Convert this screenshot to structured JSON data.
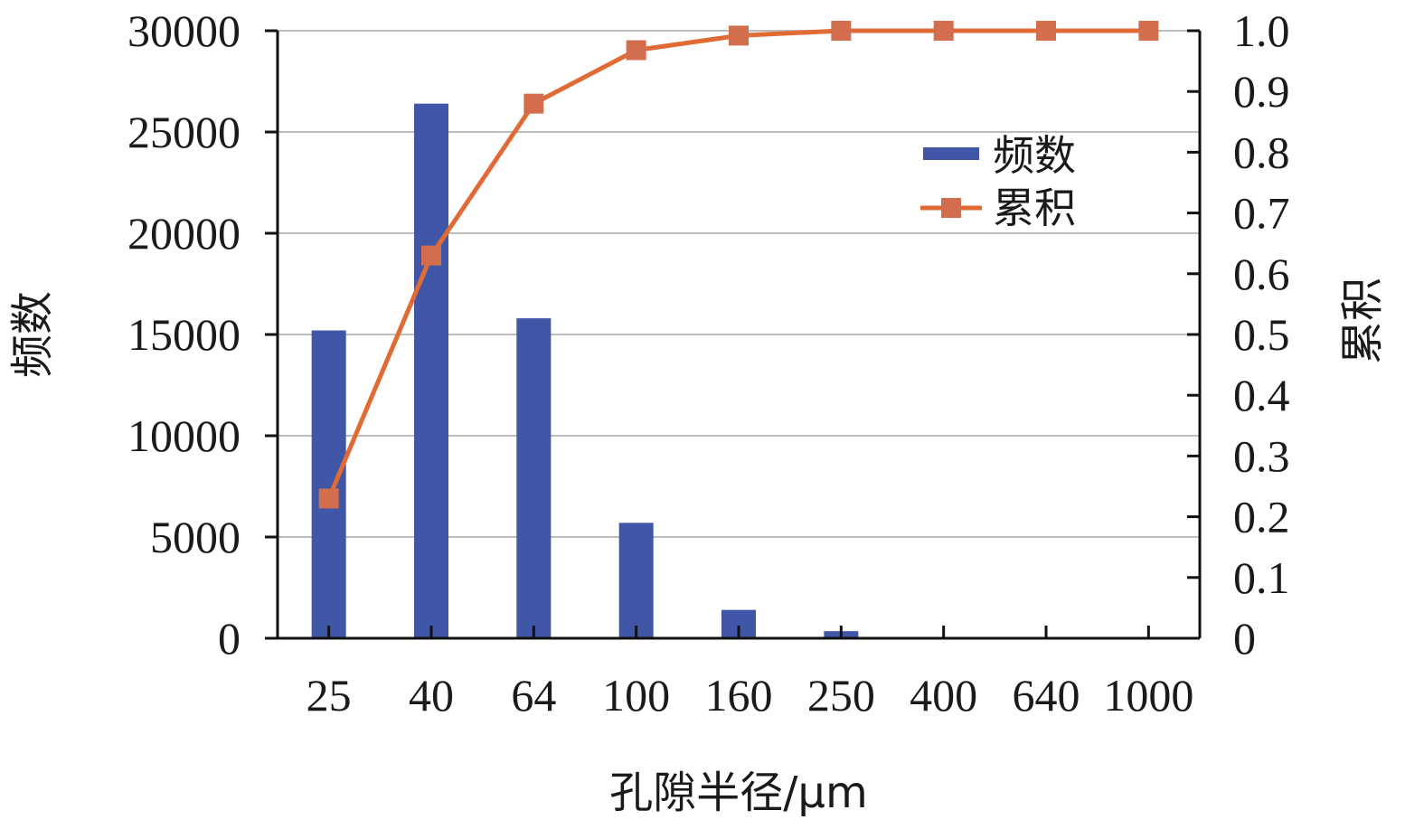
{
  "chart_data": {
    "type": "bar",
    "categories": [
      "25",
      "40",
      "64",
      "100",
      "160",
      "250",
      "400",
      "640",
      "1000"
    ],
    "xlabel": "孔隙半径/μm",
    "ylabel": "频数",
    "y2label": "累积",
    "ylim": [
      0,
      30000
    ],
    "y2lim": [
      0,
      1.0
    ],
    "yticks": [
      "0",
      "5000",
      "10000",
      "15000",
      "20000",
      "25000",
      "30000"
    ],
    "y2ticks": [
      "0",
      "0.1",
      "0.2",
      "0.3",
      "0.4",
      "0.5",
      "0.6",
      "0.7",
      "0.8",
      "0.9",
      "1.0"
    ],
    "grid": true,
    "legend_position": "upper-right-inside",
    "series": [
      {
        "name": "频数",
        "type": "bar",
        "axis": "left",
        "color": "#3f57a6",
        "values": [
          15200,
          26400,
          15800,
          5700,
          1400,
          350,
          0,
          0,
          0
        ]
      },
      {
        "name": "累积",
        "type": "line",
        "axis": "right",
        "color": "#e06b34",
        "marker_color": "#d26e4e",
        "values": [
          0.23,
          0.63,
          0.88,
          0.968,
          0.992,
          1.0,
          1.0,
          1.0,
          1.0
        ]
      }
    ]
  }
}
